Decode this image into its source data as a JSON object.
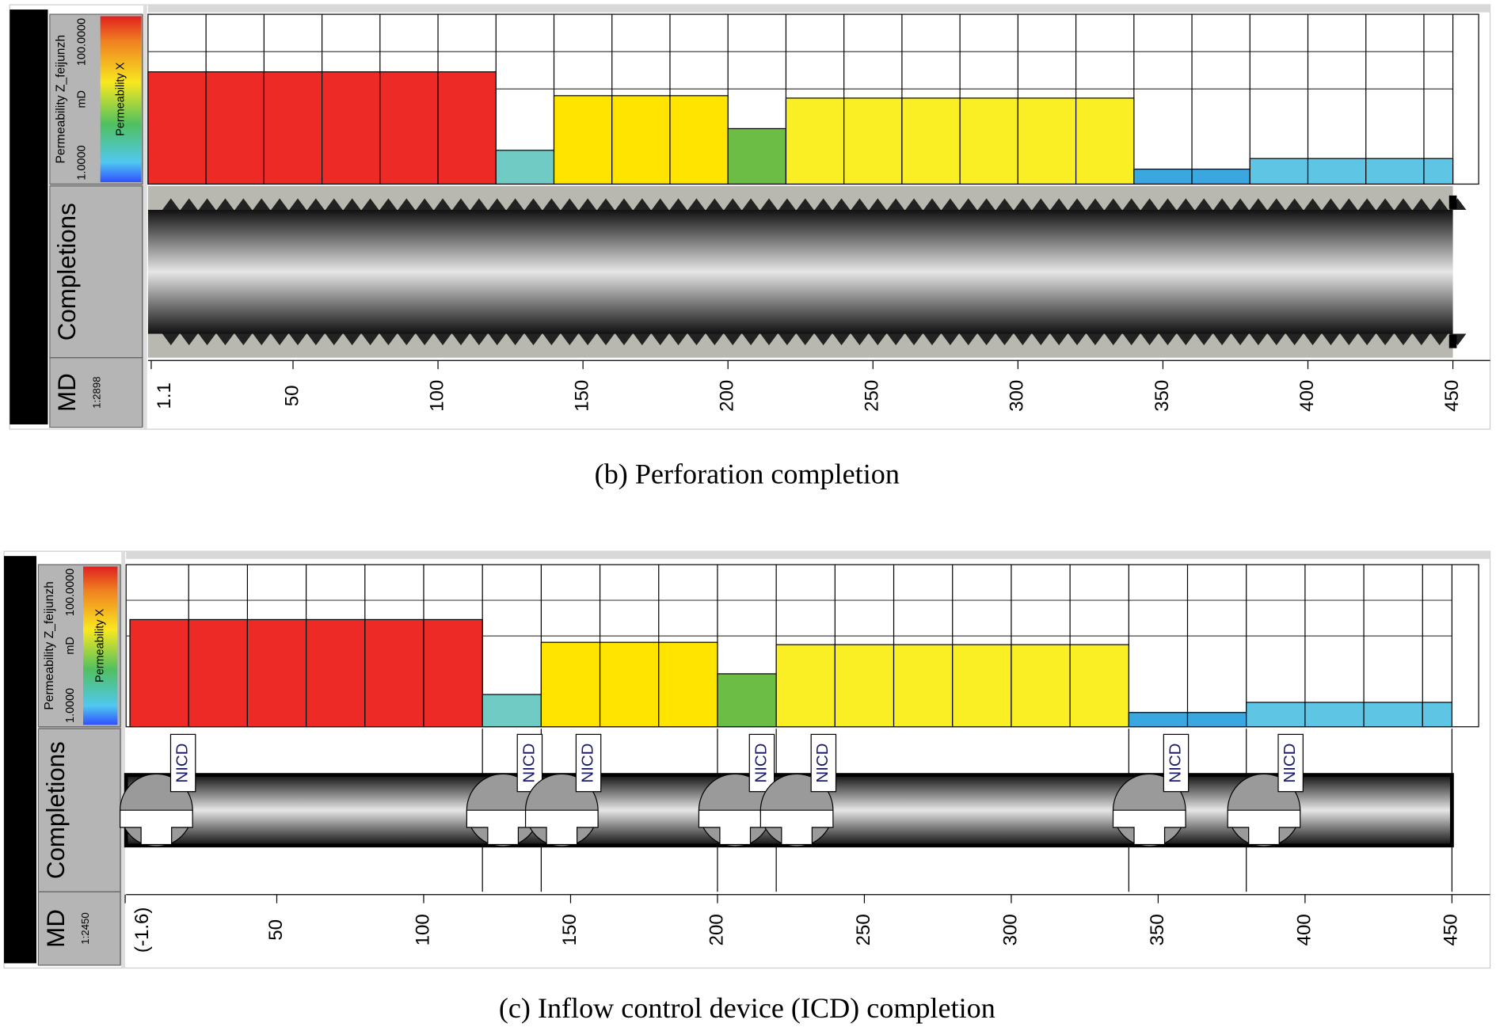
{
  "panels": [
    {
      "header": {
        "track_title": "Permeability Z_feijunzh",
        "scale_min": {
          "value": 1,
          "label": "1.0000"
        },
        "unit": "mD",
        "scale_max": {
          "value": 100,
          "label": "100.0000"
        },
        "log": true,
        "color_bar_title": "Permeability X",
        "completions_title": "Completions",
        "md_title": "MD",
        "md_scale": "1:2898"
      },
      "segments": [
        {
          "from": 0,
          "to": 120,
          "value": 21,
          "color": "#ee2a27"
        },
        {
          "from": 120,
          "to": 140,
          "value": 2.5,
          "color": "#6fcbc4"
        },
        {
          "from": 140,
          "to": 200,
          "value": 11,
          "color": "#ffe400"
        },
        {
          "from": 200,
          "to": 220,
          "value": 4.5,
          "color": "#6cbd45"
        },
        {
          "from": 220,
          "to": 340,
          "value": 10.3,
          "color": "#faee25"
        },
        {
          "from": 340,
          "to": 380,
          "value": 1.5,
          "color": "#3aa7e0"
        },
        {
          "from": 380,
          "to": 450,
          "value": 2,
          "color": "#5ec5e5"
        }
      ],
      "completion": "perforation",
      "md_ticks": [
        1.1,
        50,
        100,
        150,
        200,
        250,
        300,
        350,
        400,
        450
      ],
      "caption": "(b) Perforation completion"
    },
    {
      "header": {
        "track_title": "Permeability Z_feijunzh",
        "scale_min": {
          "value": 1,
          "label": "1.0000"
        },
        "unit": "mD",
        "scale_max": {
          "value": 100,
          "label": "100.0000"
        },
        "log": true,
        "color_bar_title": "Permeability X",
        "completions_title": "Completions",
        "md_title": "MD",
        "md_scale": "1:2450"
      },
      "segments": [
        {
          "from": 0,
          "to": 120,
          "value": 21,
          "color": "#ee2a27"
        },
        {
          "from": 120,
          "to": 140,
          "value": 2.5,
          "color": "#6fcbc4"
        },
        {
          "from": 140,
          "to": 200,
          "value": 11,
          "color": "#ffe400"
        },
        {
          "from": 200,
          "to": 220,
          "value": 4.5,
          "color": "#6cbd45"
        },
        {
          "from": 220,
          "to": 340,
          "value": 10.3,
          "color": "#faee25"
        },
        {
          "from": 340,
          "to": 380,
          "value": 1.5,
          "color": "#3aa7e0"
        },
        {
          "from": 380,
          "to": 450,
          "value": 2,
          "color": "#5ec5e5"
        }
      ],
      "completion": "icd",
      "icds": [
        {
          "md": 9,
          "label": "NICD"
        },
        {
          "md": 127,
          "label": "NICD"
        },
        {
          "md": 147,
          "label": "NICD"
        },
        {
          "md": 206,
          "label": "NICD"
        },
        {
          "md": 227,
          "label": "NICD"
        },
        {
          "md": 347,
          "label": "NICD"
        },
        {
          "md": 386,
          "label": "NICD"
        }
      ],
      "md_ticks": [
        {
          "value": -1.6,
          "label": "(-1.6)"
        },
        50,
        100,
        150,
        200,
        250,
        300,
        350,
        400,
        450
      ],
      "caption": "(c) Inflow control device (ICD) completion"
    }
  ]
}
